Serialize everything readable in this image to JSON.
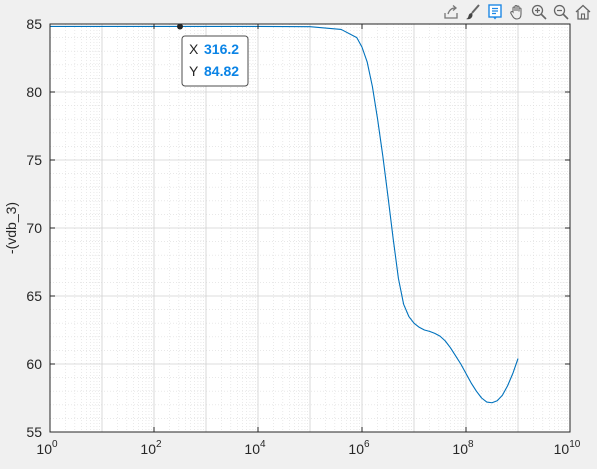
{
  "toolbar": {
    "icons": [
      "export-icon",
      "brush-icon",
      "data-tips-icon",
      "pan-icon",
      "zoom-in-icon",
      "zoom-out-icon",
      "home-icon"
    ]
  },
  "datatip": {
    "x_label": "X",
    "x_value": "316.2",
    "y_label": "Y",
    "y_value": "84.82",
    "point": {
      "x": 316.2,
      "y": 84.82
    }
  },
  "chart_data": {
    "type": "line",
    "title": "",
    "xlabel": "",
    "ylabel": "-(vdb_3)",
    "xscale": "log",
    "xlim": [
      1,
      10000000000
    ],
    "ylim": [
      55,
      85
    ],
    "grid": true,
    "minor_grid": true,
    "x_ticks": [
      {
        "value": 1,
        "base": "10",
        "exp": "0"
      },
      {
        "value": 100,
        "base": "10",
        "exp": "2"
      },
      {
        "value": 10000,
        "base": "10",
        "exp": "4"
      },
      {
        "value": 1000000,
        "base": "10",
        "exp": "6"
      },
      {
        "value": 100000000,
        "base": "10",
        "exp": "8"
      },
      {
        "value": 10000000000,
        "base": "10",
        "exp": "10"
      }
    ],
    "y_ticks": [
      {
        "value": 55,
        "label": "55"
      },
      {
        "value": 60,
        "label": "60"
      },
      {
        "value": 65,
        "label": "65"
      },
      {
        "value": 70,
        "label": "70"
      },
      {
        "value": 75,
        "label": "75"
      },
      {
        "value": 80,
        "label": "80"
      },
      {
        "value": 85,
        "label": "85"
      }
    ],
    "series": [
      {
        "color": "#0072bd",
        "x": [
          1,
          100,
          10000,
          100000,
          398107,
          794328,
          1000000,
          1258925,
          1584893,
          1995262,
          2511886,
          3162278,
          3981072,
          5011872,
          6309573,
          7943282,
          10000000,
          12589254,
          15848932,
          19952623,
          25118864,
          31622777,
          39810717,
          50118723,
          63095734,
          79432823,
          100000000,
          125892541,
          158489319,
          199526231,
          251188643,
          316227766,
          398107171,
          501187234,
          630957344,
          794328235,
          1000000000
        ],
        "y": [
          84.82,
          84.82,
          84.82,
          84.8,
          84.6,
          84.0,
          83.3,
          82.2,
          80.4,
          78.0,
          75.3,
          72.3,
          69.2,
          66.3,
          64.4,
          63.5,
          63.0,
          62.7,
          62.5,
          62.4,
          62.25,
          62.05,
          61.7,
          61.2,
          60.6,
          60.0,
          59.3,
          58.6,
          58.0,
          57.5,
          57.2,
          57.15,
          57.3,
          57.7,
          58.4,
          59.3,
          60.4
        ]
      }
    ]
  }
}
